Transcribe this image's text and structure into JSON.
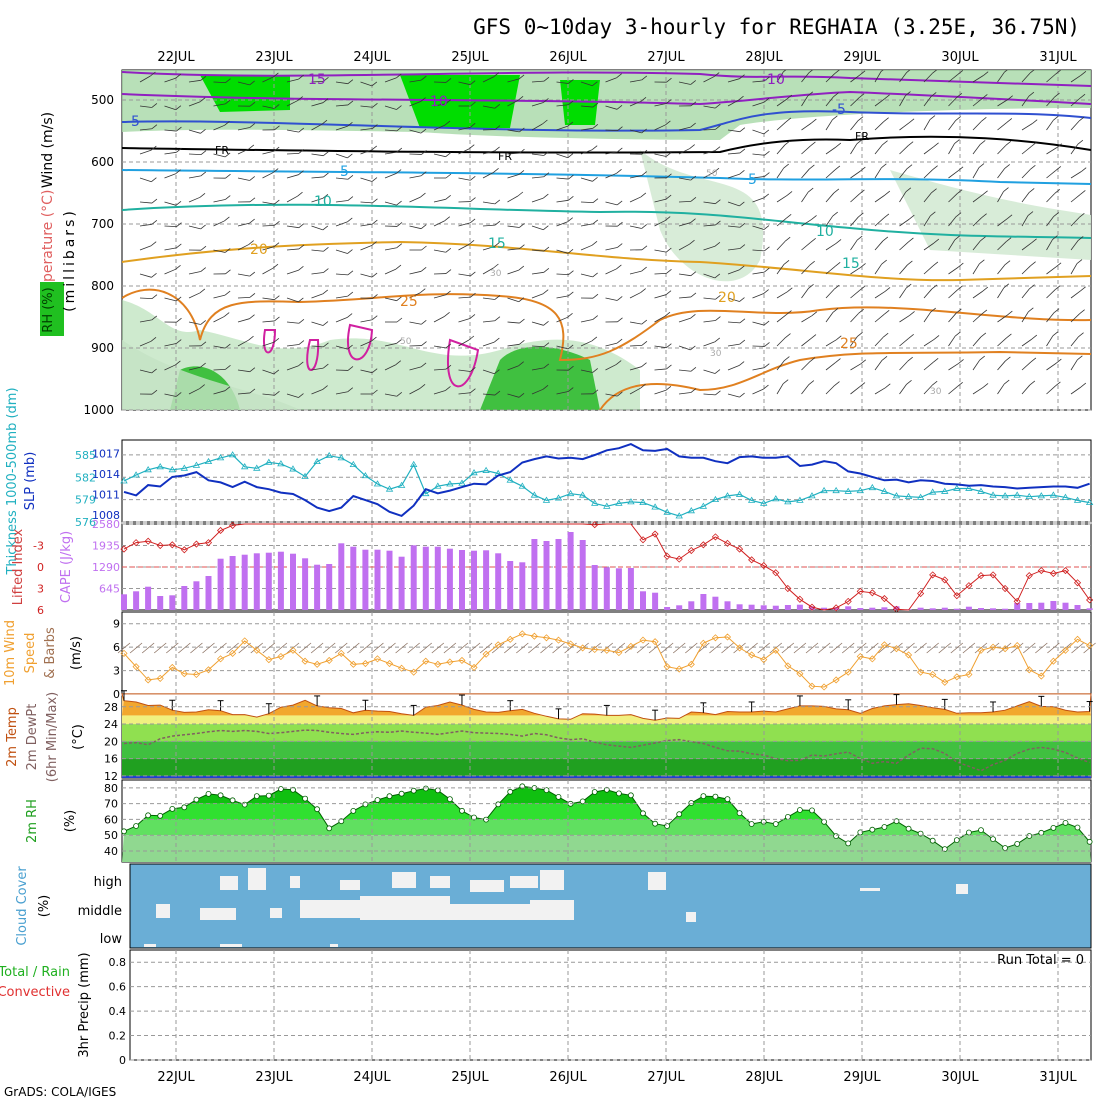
{
  "header": {
    "title": "GFS 0~10day 3-hourly for REGHAIA (3.25E, 36.75N)",
    "credit": "GrADS: COLA/IGES"
  },
  "colors": {
    "rh_fill": "#00dd00",
    "temp_line": "#e89000",
    "wind_line": "#3050d0",
    "thickness": "#20b0c0",
    "slp": "#1030c0",
    "cape_bar": "#c070f0",
    "lifted_index": "#d02020",
    "wind_speed": "#f0a030",
    "temp_fill": "#f0a020",
    "dewpt_fill": "#40d040",
    "rh2m_fill": "#00c800",
    "cloud": "#6aaed6",
    "cloud_clear": "#f2f2f2"
  },
  "chart_data": {
    "date_axis": [
      "22JUL",
      "23JUL",
      "24JUL",
      "25JUL",
      "26JUL",
      "27JUL",
      "28JUL",
      "29JUL",
      "30JUL",
      "31JUL"
    ],
    "panels": [
      {
        "id": "upper_air",
        "type": "heatmap",
        "ylabel_parts": [
          "Wind (m/s)",
          "Temperature (°C)",
          "RH (%)"
        ],
        "ylabel_units": "(millibars)",
        "yticks": [
          "500",
          "600",
          "700",
          "800",
          "900",
          "1000"
        ],
        "contour_labels": [
          "15",
          "10",
          "-5",
          "-10",
          "-5",
          "FR",
          "FR",
          "FR",
          "5",
          "5",
          "10",
          "10",
          "15",
          "15",
          "20",
          "20",
          "25",
          "25",
          "50",
          "50",
          "30",
          "30",
          "30"
        ]
      },
      {
        "id": "thickness_slp",
        "type": "line",
        "ylabel_left": "Thickness 1000-500mb (dm)",
        "ylabel_right": "SLP (mb)",
        "yticks_left": [
          "585",
          "582",
          "579",
          "576"
        ],
        "yticks_right": [
          "1017",
          "1014",
          "1011",
          "1008"
        ],
        "ylim_thickness": [
          576,
          587
        ],
        "ylim_slp": [
          1007,
          1019
        ],
        "series": [
          {
            "name": "Thickness 1000-500mb",
            "values": [
              581.5,
              582.3,
              583,
              583.4,
              583,
              583.2,
              583.6,
              584.1,
              584.6,
              585,
              583.4,
              583.2,
              584,
              583.8,
              583.1,
              582.1,
              584.1,
              584.9,
              584.6,
              583.7,
              582.2,
              581.1,
              580.4,
              580.9,
              583.7,
              579.8,
              580.8,
              581.1,
              581.2,
              582.6,
              582.9,
              582.5,
              581.6,
              580.8,
              579.6,
              578.9,
              579.2,
              579.8,
              579.6,
              578.5,
              578.1,
              578.5,
              578.7,
              578.6,
              578,
              577.3,
              576.8,
              577.5,
              578.1,
              579,
              579.5,
              579.7,
              578.9,
              578.5,
              579.1,
              578.7,
              578.9,
              579.5,
              580.2,
              580.2,
              580.1,
              580.2,
              580.6,
              580.1,
              579.5,
              579.4,
              579.3,
              580.0,
              580.1,
              580.5,
              580.5,
              580.1,
              579.6,
              579.5,
              579.6,
              579.4,
              579.5,
              579.6,
              579.3,
              578.9,
              578.6
            ]
          },
          {
            "name": "SLP",
            "values": [
              1011.4,
              1010.9,
              1012.4,
              1012.2,
              1013.6,
              1013.8,
              1014.3,
              1013.1,
              1012.8,
              1012.1,
              1012.9,
              1012.1,
              1011.8,
              1011.3,
              1011.1,
              1010.2,
              1009.1,
              1008.6,
              1009.1,
              1010.8,
              1010.2,
              1009.6,
              1008.5,
              1007.9,
              1009.4,
              1011.8,
              1011.2,
              1011.6,
              1012.1,
              1012.6,
              1012.5,
              1013.8,
              1014.3,
              1015.7,
              1016.2,
              1016.6,
              1016.3,
              1016.4,
              1016.2,
              1016.8,
              1017.5,
              1017.8,
              1018.4,
              1017.5,
              1017.4,
              1017.7,
              1016.6,
              1016.4,
              1016.4,
              1015.9,
              1015.6,
              1016.5,
              1016.6,
              1016.4,
              1016.4,
              1016.6,
              1015.2,
              1015.4,
              1015.9,
              1015.6,
              1014.4,
              1014.1,
              1013.6,
              1013.1,
              1013.2,
              1012.8,
              1013.1,
              1013.0,
              1012.6,
              1012.5,
              1012.3,
              1012.4,
              1012.2,
              1012.1,
              1011.9,
              1012.0,
              1012.1,
              1012.2,
              1012.2,
              1012.0,
              1012.6
            ]
          }
        ]
      },
      {
        "id": "cape_li",
        "type": "bar",
        "ylabel_left": "Lifted Index",
        "ylabel_right": "CAPE (J/kg)",
        "yticks_left": [
          "-3",
          "0",
          "3",
          "6"
        ],
        "yticks_right": [
          "2580",
          "1935",
          "1290",
          "645"
        ],
        "ylim_cape": [
          0,
          2580
        ],
        "ylim_li": [
          6,
          -6
        ],
        "series": [
          {
            "name": "CAPE",
            "values": [
              470,
              560,
              700,
              420,
              440,
              720,
              860,
              1020,
              1540,
              1620,
              1660,
              1700,
              1720,
              1750,
              1690,
              1550,
              1360,
              1380,
              2000,
              1900,
              1810,
              1810,
              1780,
              1600,
              1940,
              1900,
              1900,
              1840,
              1800,
              1780,
              1790,
              1700,
              1470,
              1430,
              2130,
              2070,
              2130,
              2340,
              2100,
              1350,
              1280,
              1250,
              1260,
              560,
              520,
              90,
              140,
              260,
              480,
              400,
              260,
              170,
              160,
              140,
              130,
              150,
              160,
              110,
              70,
              80,
              110,
              60,
              70,
              80,
              110,
              20,
              70,
              50,
              70,
              40,
              100,
              60,
              50,
              40,
              210,
              210,
              220,
              270,
              220,
              150,
              50
            ]
          },
          {
            "name": "Lifted Index",
            "values": [
              -2.5,
              -3.4,
              -3.6,
              -3,
              -3.1,
              -2.4,
              -3.2,
              -3.4,
              -5.1,
              -5.8,
              -6.2,
              -6.3,
              -6.5,
              -6.4,
              -6.5,
              -6.8,
              -6.6,
              -6.8,
              -6.7,
              -7.1,
              -7.4,
              -7.6,
              -7.3,
              -7.2,
              -7.8,
              -7.9,
              -7.5,
              -6.9,
              -7.2,
              -7.4,
              -7.5,
              -7.6,
              -6.9,
              -6.5,
              -7.6,
              -7.4,
              -7.8,
              -8.0,
              -7.5,
              -5.9,
              -7.2,
              -6.1,
              -6.3,
              -3.8,
              -4.6,
              -1.5,
              -1.1,
              -2.3,
              -3.1,
              -4.2,
              -3.3,
              -2.5,
              -1.0,
              -0.2,
              0.8,
              3.0,
              4.5,
              5.6,
              6.1,
              5.7,
              4.8,
              3.4,
              3.6,
              4.4,
              5.9,
              6.3,
              3.7,
              1.1,
              1.8,
              4.0,
              2.6,
              1.2,
              1.1,
              3.0,
              4.8,
              1.2,
              0.5,
              0.9,
              0.5,
              2.2,
              4.6
            ]
          }
        ]
      },
      {
        "id": "wind10m",
        "type": "line",
        "ylabel_left": "10m Wind",
        "ylabel_mid": "Speed",
        "ylabel_right": "& Barbs",
        "ylabel_units": "(m/s)",
        "yticks": [
          "9",
          "6",
          "3",
          "0"
        ],
        "ylim": [
          0,
          10.5
        ],
        "series": [
          {
            "name": "10m Wind Speed",
            "values": [
              5.2,
              3.5,
              1.8,
              2.0,
              3.4,
              2.6,
              2.5,
              3.1,
              4.5,
              5.2,
              6.8,
              5.6,
              4.4,
              4.8,
              5.6,
              4.2,
              3.8,
              4.3,
              5.2,
              3.8,
              3.9,
              4.5,
              3.9,
              3.3,
              2.8,
              4.2,
              3.8,
              4.1,
              4.3,
              3.4,
              5.1,
              6.3,
              7.0,
              7.7,
              7.4,
              7.2,
              6.9,
              6.4,
              5.9,
              5.7,
              5.6,
              5.3,
              6.1,
              6.9,
              6.7,
              3.5,
              3.2,
              3.8,
              6.5,
              7.2,
              7.3,
              5.9,
              5.0,
              4.4,
              5.6,
              3.6,
              2.6,
              1.0,
              0.9,
              1.8,
              2.8,
              4.8,
              4.5,
              6.3,
              5.8,
              5.0,
              2.8,
              2.5,
              1.5,
              2.2,
              2.5,
              5.6,
              6.0,
              5.8,
              6.2,
              3.1,
              2.3,
              4.2,
              5.6,
              7.0,
              6.2
            ]
          }
        ]
      },
      {
        "id": "temp2m",
        "type": "area",
        "ylabel_left": "2m Temp",
        "ylabel_mid": "2m DewPt",
        "ylabel_right": "(6hr Min/Max)",
        "ylabel_units": "(°C)",
        "yticks": [
          "28",
          "24",
          "20",
          "16",
          "12"
        ],
        "ylim": [
          11.5,
          30.5
        ],
        "series": [
          {
            "name": "2m Temp",
            "values": [
              29.4,
              29.1,
              28.3,
              28.4,
              27.2,
              26.7,
              26.8,
              27.3,
              27.1,
              26.2,
              26.2,
              25.6,
              26.4,
              27.9,
              28.4,
              29.5,
              28.2,
              27.8,
              27.6,
              26.6,
              27.2,
              27.0,
              26.9,
              26.4,
              26.0,
              27.9,
              28.3,
              29.1,
              28.4,
              27.4,
              26.8,
              26.7,
              27.1,
              27.4,
              26.5,
              25.8,
              25.2,
              25.1,
              26.4,
              26.3,
              26.0,
              26.0,
              26.2,
              25.3,
              24.9,
              25.4,
              25.3,
              26.8,
              26.6,
              26.2,
              26.9,
              26.8,
              26.8,
              27.0,
              26.8,
              27.5,
              28.2,
              28.2,
              28.1,
              27.5,
              27.3,
              26.5,
              27.6,
              28.2,
              28.5,
              28.7,
              28.3,
              27.8,
              27.4,
              26.5,
              26.6,
              26.6,
              26.8,
              27.2,
              28.2,
              29.2,
              28.1,
              28.0,
              27.2,
              26.8,
              26.9
            ]
          },
          {
            "name": "2m DewPt",
            "values": [
              19.5,
              19.7,
              19.2,
              20.6,
              21.2,
              21.5,
              21.8,
              22.2,
              22.5,
              22.3,
              22.5,
              22.3,
              21.8,
              22.0,
              22.3,
              22.6,
              22.5,
              22.1,
              21.8,
              21.6,
              22.0,
              22.2,
              22.1,
              22.4,
              22.1,
              21.9,
              21.6,
              22.0,
              22.4,
              22.0,
              21.9,
              21.8,
              21.6,
              21.2,
              21.8,
              21.5,
              20.8,
              20.4,
              20.6,
              19.8,
              19.2,
              18.9,
              18.6,
              19.1,
              19.6,
              20.2,
              20.4,
              19.9,
              19.5,
              18.6,
              17.8,
              17.7,
              17.1,
              16.8,
              16.0,
              15.5,
              15.6,
              16.8,
              16.6,
              17.1,
              17.5,
              16.0,
              14.9,
              15.3,
              14.9,
              16.8,
              18.4,
              18.3,
              17.2,
              15.2,
              14.2,
              13.2,
              14.6,
              15.6,
              17.2,
              18.2,
              18.6,
              18.2,
              17.4,
              16.1,
              15.1
            ]
          }
        ]
      },
      {
        "id": "rh2m",
        "type": "area",
        "ylabel_left": "2m RH",
        "ylabel_units": "(%)",
        "yticks": [
          "80",
          "70",
          "60",
          "50",
          "40"
        ],
        "ylim": [
          33,
          85
        ],
        "series": [
          {
            "name": "2m RH",
            "values": [
              52.5,
              55.8,
              62.6,
              62.3,
              66.7,
              67.7,
              72.6,
              76.2,
              75.3,
              72.1,
              69.4,
              74.8,
              75.1,
              79.3,
              78.8,
              73.2,
              66.5,
              54.4,
              58.9,
              65.4,
              69.5,
              72.3,
              74.7,
              76.3,
              78.2,
              79.6,
              78.5,
              72.9,
              65.5,
              61.2,
              59.9,
              69.6,
              77.5,
              81.0,
              79.9,
              78.6,
              74.3,
              69.9,
              71.4,
              77.4,
              78.8,
              76.5,
              75.3,
              63.9,
              57.3,
              55.8,
              63.3,
              70.4,
              74.8,
              74.5,
              72.9,
              64.0,
              57.1,
              58.5,
              57.1,
              61.6,
              66.0,
              65.7,
              58.5,
              49.4,
              44.8,
              51.8,
              53.5,
              55.2,
              58.9,
              54.1,
              51.0,
              46.5,
              41.2,
              46.9,
              51.7,
              53.2,
              47.5,
              41.9,
              44.5,
              49.5,
              51.5,
              54.6,
              57.8,
              54.9,
              45.8
            ]
          }
        ]
      },
      {
        "id": "cloud",
        "type": "heatmap",
        "ylabel": "Cloud Cover",
        "ylabel_units": "(%)",
        "layer_labels": [
          "high",
          "middle",
          "low"
        ]
      },
      {
        "id": "precip",
        "type": "bar",
        "ylabel_left": "Total / Rain",
        "ylabel_mid": "Convective",
        "ylabel_right": "3hr Precip (mm)",
        "yticks": [
          "0.8",
          "0.6",
          "0.4",
          "0.2",
          "0"
        ],
        "ylim": [
          0,
          0.9
        ],
        "run_total": "Run Total = 0",
        "series": [
          {
            "name": "3hr Precip",
            "values": []
          }
        ]
      }
    ]
  }
}
